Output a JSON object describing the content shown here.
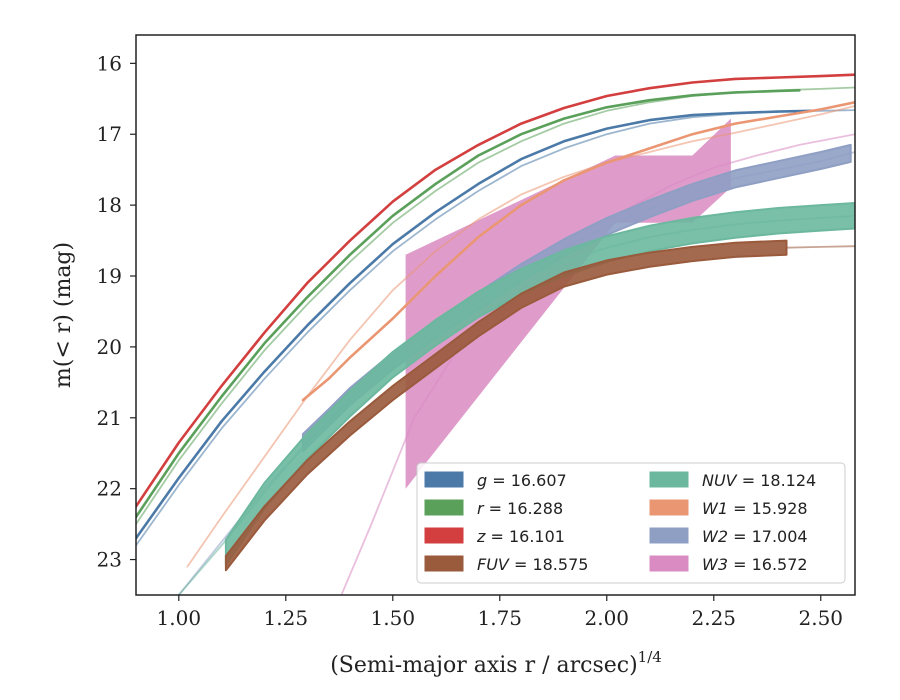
{
  "chart_data": {
    "type": "line",
    "xlabel": "(Semi-major axis r / arcsec)",
    "xlabel_sup": "1/4",
    "ylabel": "m(< r) (mag)",
    "xlim": [
      0.9,
      2.58
    ],
    "ylim": [
      23.5,
      15.6
    ],
    "y_inverted": true,
    "xticks": [
      1.0,
      1.25,
      1.5,
      1.75,
      2.0,
      2.25,
      2.5
    ],
    "xtick_labels": [
      "1.00",
      "1.25",
      "1.50",
      "1.75",
      "2.00",
      "2.25",
      "2.50"
    ],
    "yticks": [
      16,
      17,
      18,
      19,
      20,
      21,
      22,
      23
    ],
    "ytick_labels": [
      "16",
      "17",
      "18",
      "19",
      "20",
      "21",
      "22",
      "23"
    ],
    "grid": false,
    "legend_position": "lower-right",
    "legend": [
      {
        "band": "g",
        "value": "16.607",
        "color": "#4c7aa8"
      },
      {
        "band": "r",
        "value": "16.288",
        "color": "#5aa05a"
      },
      {
        "band": "z",
        "value": "16.101",
        "color": "#d33f3f"
      },
      {
        "band": "FUV",
        "value": "18.575",
        "color": "#9a5a3c"
      },
      {
        "band": "NUV",
        "value": "18.124",
        "color": "#6cb89e"
      },
      {
        "band": "W1",
        "value": "15.928",
        "color": "#ea9673"
      },
      {
        "band": "W2",
        "value": "17.004",
        "color": "#8f9fc4"
      },
      {
        "band": "W3",
        "value": "16.572",
        "color": "#d98bc2"
      }
    ],
    "series": [
      {
        "band": "g",
        "color": "#4c7aa8",
        "kind": "thin",
        "data": [
          [
            0.9,
            22.8
          ],
          [
            1.0,
            21.95
          ],
          [
            1.1,
            21.15
          ],
          [
            1.2,
            20.45
          ],
          [
            1.3,
            19.8
          ],
          [
            1.4,
            19.2
          ],
          [
            1.5,
            18.65
          ],
          [
            1.6,
            18.2
          ],
          [
            1.7,
            17.8
          ],
          [
            1.8,
            17.45
          ],
          [
            1.9,
            17.2
          ],
          [
            2.0,
            17.0
          ],
          [
            2.1,
            16.85
          ],
          [
            2.2,
            16.76
          ],
          [
            2.3,
            16.71
          ],
          [
            2.4,
            16.68
          ],
          [
            2.5,
            16.67
          ],
          [
            2.58,
            16.66
          ]
        ]
      },
      {
        "band": "r",
        "color": "#5aa05a",
        "kind": "thin",
        "data": [
          [
            0.9,
            22.5
          ],
          [
            1.0,
            21.6
          ],
          [
            1.1,
            20.8
          ],
          [
            1.2,
            20.05
          ],
          [
            1.3,
            19.4
          ],
          [
            1.4,
            18.8
          ],
          [
            1.5,
            18.25
          ],
          [
            1.6,
            17.8
          ],
          [
            1.7,
            17.4
          ],
          [
            1.8,
            17.1
          ],
          [
            1.9,
            16.85
          ],
          [
            2.0,
            16.67
          ],
          [
            2.1,
            16.55
          ],
          [
            2.2,
            16.46
          ],
          [
            2.3,
            16.41
          ],
          [
            2.4,
            16.38
          ],
          [
            2.5,
            16.36
          ],
          [
            2.58,
            16.34
          ]
        ]
      },
      {
        "band": "z",
        "color": "#d33f3f",
        "kind": "thin",
        "data": [
          [
            0.9,
            22.25
          ],
          [
            1.0,
            21.35
          ],
          [
            1.1,
            20.55
          ],
          [
            1.2,
            19.8
          ],
          [
            1.3,
            19.1
          ],
          [
            1.4,
            18.5
          ],
          [
            1.5,
            17.95
          ],
          [
            1.6,
            17.5
          ],
          [
            1.7,
            17.15
          ],
          [
            1.8,
            16.85
          ],
          [
            1.9,
            16.63
          ],
          [
            2.0,
            16.46
          ],
          [
            2.1,
            16.35
          ],
          [
            2.2,
            16.27
          ],
          [
            2.3,
            16.22
          ],
          [
            2.4,
            16.2
          ],
          [
            2.5,
            16.18
          ],
          [
            2.58,
            16.16
          ]
        ]
      },
      {
        "band": "W1",
        "color": "#ea9673",
        "kind": "thin",
        "data": [
          [
            1.02,
            23.1
          ],
          [
            1.1,
            22.4
          ],
          [
            1.2,
            21.55
          ],
          [
            1.3,
            20.7
          ],
          [
            1.4,
            19.9
          ],
          [
            1.5,
            19.2
          ],
          [
            1.6,
            18.65
          ],
          [
            1.7,
            18.2
          ],
          [
            1.8,
            17.85
          ],
          [
            1.9,
            17.6
          ],
          [
            2.0,
            17.4
          ],
          [
            2.1,
            17.25
          ],
          [
            2.2,
            17.1
          ],
          [
            2.3,
            16.98
          ],
          [
            2.4,
            16.85
          ],
          [
            2.5,
            16.72
          ],
          [
            2.58,
            16.6
          ]
        ]
      },
      {
        "band": "W2",
        "color": "#8f9fc4",
        "kind": "thin",
        "data": [
          [
            1.0,
            23.5
          ],
          [
            1.1,
            22.75
          ],
          [
            1.2,
            22.0
          ],
          [
            1.3,
            21.35
          ],
          [
            1.4,
            20.75
          ],
          [
            1.5,
            20.2
          ],
          [
            1.6,
            19.75
          ],
          [
            1.7,
            19.35
          ],
          [
            1.8,
            18.95
          ],
          [
            1.9,
            18.6
          ],
          [
            2.0,
            18.3
          ],
          [
            2.1,
            18.05
          ],
          [
            2.2,
            17.82
          ],
          [
            2.3,
            17.62
          ],
          [
            2.4,
            17.5
          ],
          [
            2.5,
            17.38
          ],
          [
            2.58,
            17.25
          ]
        ]
      },
      {
        "band": "NUV",
        "color": "#6cb89e",
        "kind": "thin",
        "data": [
          [
            1.0,
            23.5
          ],
          [
            1.1,
            22.8
          ],
          [
            1.2,
            22.05
          ],
          [
            1.3,
            21.35
          ],
          [
            1.4,
            20.75
          ],
          [
            1.5,
            20.2
          ],
          [
            1.6,
            19.75
          ],
          [
            1.7,
            19.35
          ],
          [
            1.8,
            19.05
          ],
          [
            1.9,
            18.8
          ],
          [
            2.0,
            18.6
          ],
          [
            2.1,
            18.45
          ],
          [
            2.2,
            18.35
          ],
          [
            2.3,
            18.27
          ],
          [
            2.4,
            18.22
          ],
          [
            2.5,
            18.18
          ],
          [
            2.58,
            18.15
          ]
        ]
      },
      {
        "band": "FUV",
        "color": "#9a5a3c",
        "kind": "thin",
        "data": [
          [
            2.42,
            18.6
          ],
          [
            2.5,
            18.59
          ],
          [
            2.58,
            18.58
          ]
        ]
      },
      {
        "band": "W3",
        "color": "#d98bc2",
        "kind": "thin",
        "data": [
          [
            1.38,
            23.5
          ],
          [
            1.45,
            22.5
          ],
          [
            1.55,
            21.0
          ],
          [
            1.65,
            20.05
          ],
          [
            1.75,
            19.4
          ],
          [
            1.85,
            18.9
          ],
          [
            1.95,
            18.45
          ],
          [
            2.05,
            18.05
          ],
          [
            2.15,
            17.72
          ],
          [
            2.25,
            17.47
          ],
          [
            2.35,
            17.3
          ],
          [
            2.45,
            17.15
          ],
          [
            2.58,
            17.0
          ]
        ]
      },
      {
        "band": "g",
        "color": "#4c7aa8",
        "kind": "thick",
        "data": [
          [
            0.9,
            22.7
          ],
          [
            1.0,
            21.85
          ],
          [
            1.1,
            21.05
          ],
          [
            1.2,
            20.35
          ],
          [
            1.3,
            19.7
          ],
          [
            1.4,
            19.1
          ],
          [
            1.5,
            18.55
          ],
          [
            1.6,
            18.1
          ],
          [
            1.7,
            17.7
          ],
          [
            1.8,
            17.35
          ],
          [
            1.9,
            17.1
          ],
          [
            2.0,
            16.92
          ],
          [
            2.1,
            16.8
          ],
          [
            2.2,
            16.73
          ],
          [
            2.3,
            16.7
          ],
          [
            2.4,
            16.68
          ],
          [
            2.48,
            16.67
          ]
        ]
      },
      {
        "band": "r",
        "color": "#5aa05a",
        "kind": "thick",
        "data": [
          [
            0.9,
            22.4
          ],
          [
            1.0,
            21.5
          ],
          [
            1.1,
            20.7
          ],
          [
            1.2,
            19.95
          ],
          [
            1.3,
            19.3
          ],
          [
            1.4,
            18.7
          ],
          [
            1.5,
            18.15
          ],
          [
            1.6,
            17.7
          ],
          [
            1.7,
            17.3
          ],
          [
            1.8,
            17.0
          ],
          [
            1.9,
            16.78
          ],
          [
            2.0,
            16.62
          ],
          [
            2.1,
            16.52
          ],
          [
            2.2,
            16.45
          ],
          [
            2.3,
            16.41
          ],
          [
            2.4,
            16.39
          ],
          [
            2.45,
            16.38
          ]
        ]
      },
      {
        "band": "z",
        "color": "#d33f3f",
        "kind": "thick",
        "data": [
          [
            0.9,
            22.25
          ],
          [
            1.0,
            21.35
          ],
          [
            1.1,
            20.55
          ],
          [
            1.2,
            19.8
          ],
          [
            1.3,
            19.1
          ],
          [
            1.4,
            18.5
          ],
          [
            1.5,
            17.95
          ],
          [
            1.6,
            17.5
          ],
          [
            1.7,
            17.15
          ],
          [
            1.8,
            16.85
          ],
          [
            1.9,
            16.63
          ],
          [
            2.0,
            16.46
          ],
          [
            2.1,
            16.35
          ],
          [
            2.2,
            16.27
          ],
          [
            2.3,
            16.22
          ],
          [
            2.4,
            16.2
          ],
          [
            2.5,
            16.18
          ],
          [
            2.58,
            16.16
          ]
        ]
      },
      {
        "band": "W1",
        "color": "#ea9673",
        "kind": "thick",
        "data": [
          [
            1.29,
            20.75
          ],
          [
            1.35,
            20.45
          ],
          [
            1.4,
            20.15
          ],
          [
            1.5,
            19.6
          ],
          [
            1.6,
            19.0
          ],
          [
            1.7,
            18.45
          ],
          [
            1.8,
            18.0
          ],
          [
            1.9,
            17.65
          ],
          [
            2.0,
            17.4
          ],
          [
            2.1,
            17.2
          ],
          [
            2.2,
            17.0
          ],
          [
            2.3,
            16.85
          ],
          [
            2.4,
            16.75
          ],
          [
            2.5,
            16.65
          ],
          [
            2.58,
            16.55
          ]
        ]
      },
      {
        "band": "W2",
        "color": "#8f9fc4",
        "kind": "band",
        "upper_offset": 0.12,
        "data": [
          [
            1.29,
            21.35
          ],
          [
            1.35,
            21.0
          ],
          [
            1.4,
            20.7
          ],
          [
            1.5,
            20.2
          ],
          [
            1.6,
            19.75
          ],
          [
            1.7,
            19.35
          ],
          [
            1.8,
            18.95
          ],
          [
            1.9,
            18.6
          ],
          [
            2.0,
            18.3
          ],
          [
            2.1,
            18.05
          ],
          [
            2.2,
            17.82
          ],
          [
            2.3,
            17.63
          ],
          [
            2.4,
            17.5
          ],
          [
            2.5,
            17.37
          ],
          [
            2.57,
            17.27
          ]
        ]
      },
      {
        "band": "NUV",
        "color": "#6cb89e",
        "kind": "band",
        "upper_offset": 0.18,
        "data": [
          [
            1.11,
            22.9
          ],
          [
            1.2,
            22.1
          ],
          [
            1.3,
            21.4
          ],
          [
            1.4,
            20.8
          ],
          [
            1.5,
            20.25
          ],
          [
            1.6,
            19.8
          ],
          [
            1.7,
            19.4
          ],
          [
            1.8,
            19.08
          ],
          [
            1.9,
            18.82
          ],
          [
            2.0,
            18.62
          ],
          [
            2.1,
            18.47
          ],
          [
            2.2,
            18.36
          ],
          [
            2.3,
            18.28
          ],
          [
            2.4,
            18.22
          ],
          [
            2.5,
            18.18
          ],
          [
            2.58,
            18.15
          ]
        ]
      },
      {
        "band": "FUV",
        "color": "#9a5a3c",
        "kind": "band",
        "upper_offset": 0.1,
        "data": [
          [
            1.11,
            23.05
          ],
          [
            1.2,
            22.35
          ],
          [
            1.3,
            21.7
          ],
          [
            1.4,
            21.15
          ],
          [
            1.5,
            20.65
          ],
          [
            1.6,
            20.2
          ],
          [
            1.7,
            19.75
          ],
          [
            1.8,
            19.35
          ],
          [
            1.9,
            19.05
          ],
          [
            2.0,
            18.88
          ],
          [
            2.1,
            18.77
          ],
          [
            2.2,
            18.69
          ],
          [
            2.3,
            18.63
          ],
          [
            2.42,
            18.6
          ]
        ]
      }
    ],
    "w3_band": {
      "color": "#d98bc2",
      "upper": [
        [
          1.53,
          18.7
        ],
        [
          2.02,
          17.3
        ],
        [
          2.2,
          17.3
        ],
        [
          2.29,
          16.78
        ]
      ],
      "lower": [
        [
          1.53,
          22.0
        ],
        [
          2.02,
          18.25
        ],
        [
          2.2,
          18.25
        ],
        [
          2.29,
          17.75
        ]
      ]
    }
  }
}
